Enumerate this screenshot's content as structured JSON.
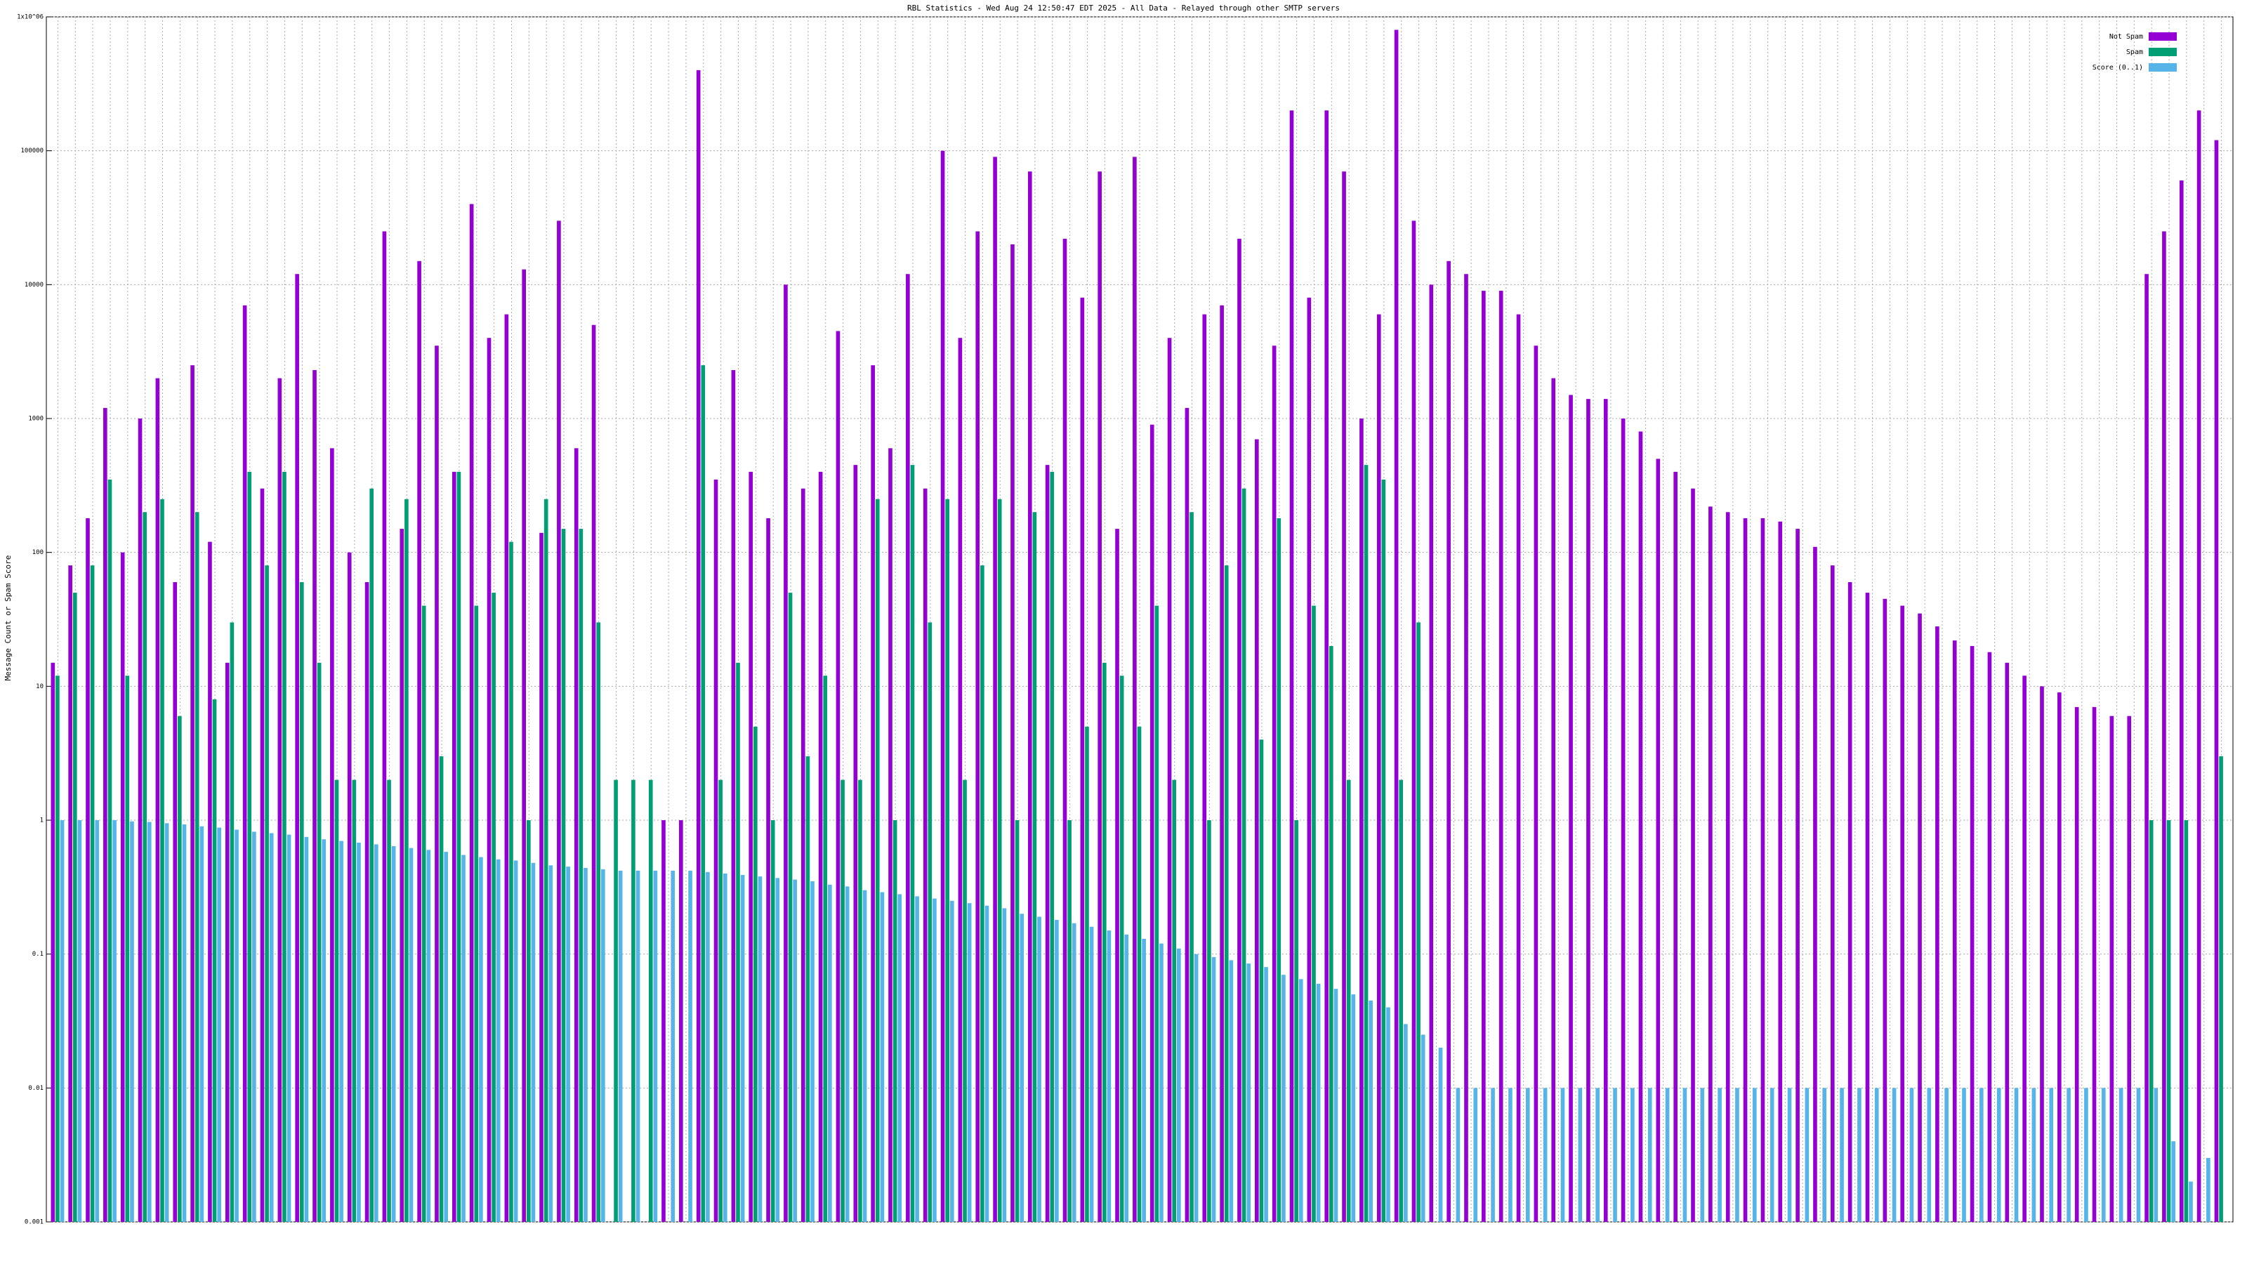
{
  "chart_data": {
    "type": "bar",
    "title": "RBL Statistics - Wed Aug 24 12:50:47 EDT 2025 - All Data - Relayed through other SMTP servers",
    "y_label": "Message Count or Spam Score",
    "log_scale": true,
    "grid": true,
    "legend": "top-right",
    "ylim": [
      0.001,
      1000000
    ],
    "yticks": [
      0.001,
      0.01,
      0.1,
      1,
      10,
      100,
      1000,
      10000,
      100000,
      {
        "value": 1000000,
        "label": "1x10^06"
      }
    ],
    "series": [
      {
        "name": "Not Spam",
        "color": "#9400d3",
        "values": [
          15,
          80,
          180,
          1200,
          100,
          1000,
          2000,
          60,
          2500,
          120,
          15,
          7000,
          300,
          2000,
          12000,
          2300,
          600,
          100,
          60,
          25000,
          150,
          15000,
          3500,
          400,
          40000,
          4000,
          6000,
          13000,
          140,
          30000,
          600,
          5000,
          null,
          null,
          null,
          1,
          1,
          400000,
          350,
          2300,
          400,
          180,
          10000,
          300,
          400,
          4500,
          450,
          2500,
          600,
          12000,
          300,
          100000,
          4000,
          25000,
          90000,
          20000,
          70000,
          450,
          22000,
          8000,
          70000,
          150,
          90000,
          900,
          4000,
          1200,
          6000,
          7000,
          22000,
          700,
          3500,
          200000,
          8000,
          200000,
          70000,
          1000,
          6000,
          800000,
          30000,
          10000,
          15000,
          12000,
          9000,
          9000,
          6000,
          3500,
          2000,
          1500,
          1400,
          1400,
          1000,
          800,
          500,
          400,
          300,
          220,
          200,
          180,
          180,
          170,
          150,
          110,
          80,
          60,
          50,
          45,
          40,
          35,
          28,
          22,
          20,
          18,
          15,
          12,
          10,
          9,
          7,
          7,
          6,
          6,
          12000,
          25000,
          60000,
          200000,
          120000
        ]
      },
      {
        "name": "Spam",
        "color": "#009e73",
        "values": [
          12,
          50,
          80,
          350,
          12,
          200,
          250,
          6,
          200,
          8,
          30,
          400,
          80,
          400,
          60,
          15,
          2,
          2,
          300,
          2,
          250,
          40,
          3,
          400,
          40,
          50,
          120,
          1,
          250,
          150,
          150,
          30,
          2,
          2,
          2,
          null,
          null,
          2500,
          2,
          15,
          5,
          1,
          50,
          3,
          12,
          2,
          2,
          250,
          1,
          450,
          30,
          250,
          2,
          80,
          250,
          1,
          200,
          400,
          1,
          5,
          15,
          12,
          5,
          40,
          2,
          200,
          1,
          80,
          300,
          4,
          180,
          1,
          40,
          20,
          2,
          450,
          350,
          2,
          30,
          null,
          null,
          null,
          null,
          null,
          null,
          null,
          null,
          null,
          null,
          null,
          null,
          null,
          null,
          null,
          null,
          null,
          null,
          null,
          null,
          null,
          null,
          null,
          null,
          null,
          null,
          null,
          null,
          null,
          null,
          null,
          null,
          null,
          null,
          null,
          null,
          null,
          null,
          null,
          null,
          null,
          1,
          1,
          1,
          null,
          3
        ]
      },
      {
        "name": "Score (0..1)",
        "color": "#56b4e9",
        "values": [
          1,
          1,
          1,
          1,
          0.98,
          0.97,
          0.95,
          0.93,
          0.9,
          0.88,
          0.85,
          0.82,
          0.8,
          0.78,
          0.75,
          0.72,
          0.7,
          0.68,
          0.66,
          0.64,
          0.62,
          0.6,
          0.58,
          0.55,
          0.53,
          0.51,
          0.5,
          0.48,
          0.46,
          0.45,
          0.44,
          0.43,
          0.42,
          0.42,
          0.42,
          0.42,
          0.42,
          0.41,
          0.4,
          0.39,
          0.38,
          0.37,
          0.36,
          0.35,
          0.33,
          0.32,
          0.3,
          0.29,
          0.28,
          0.27,
          0.26,
          0.25,
          0.24,
          0.23,
          0.22,
          0.2,
          0.19,
          0.18,
          0.17,
          0.16,
          0.15,
          0.14,
          0.13,
          0.12,
          0.11,
          0.1,
          0.095,
          0.09,
          0.085,
          0.08,
          0.07,
          0.065,
          0.06,
          0.055,
          0.05,
          0.045,
          0.04,
          0.03,
          0.025,
          0.02,
          0.01,
          0.01,
          0.01,
          0.01,
          0.01,
          0.01,
          0.01,
          0.01,
          0.01,
          0.01,
          0.01,
          0.01,
          0.01,
          0.01,
          0.01,
          0.01,
          0.01,
          0.01,
          0.01,
          0.01,
          0.01,
          0.01,
          0.01,
          0.01,
          0.01,
          0.01,
          0.01,
          0.01,
          0.01,
          0.01,
          0.01,
          0.01,
          0.01,
          0.01,
          0.01,
          0.01,
          0.01,
          0.01,
          0.01,
          0.01,
          0.01,
          0.004,
          0.002,
          0.003,
          0.001
        ]
      }
    ]
  }
}
